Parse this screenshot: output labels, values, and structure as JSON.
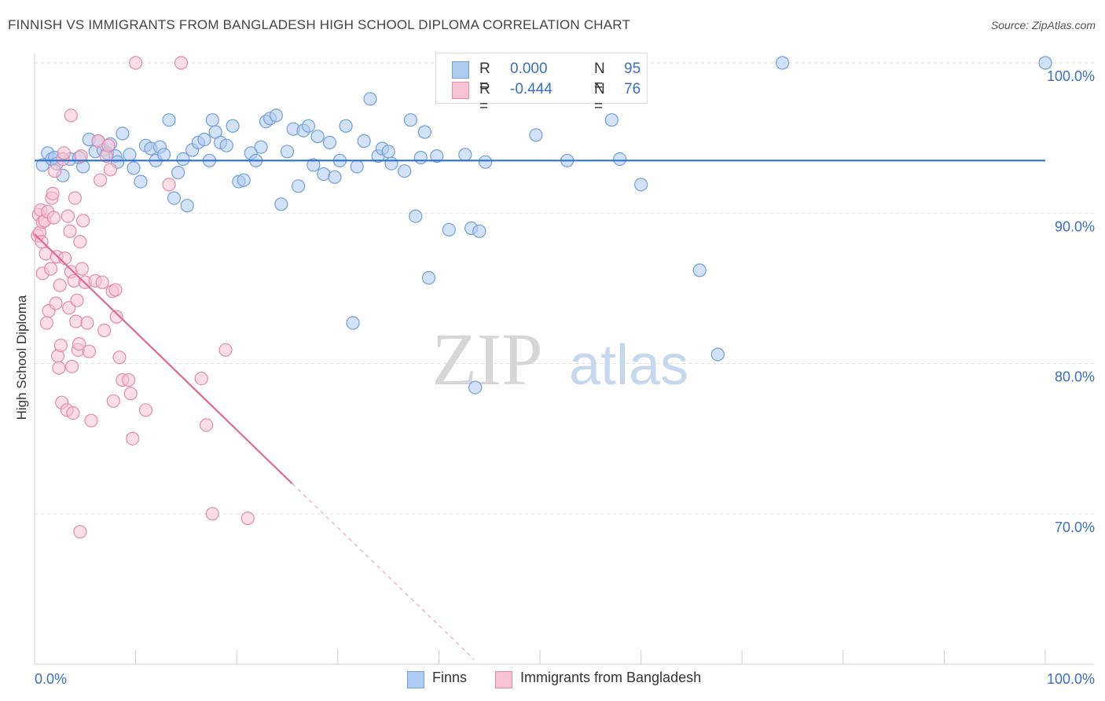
{
  "title": "FINNISH VS IMMIGRANTS FROM BANGLADESH HIGH SCHOOL DIPLOMA CORRELATION CHART",
  "source": "Source: ZipAtlas.com",
  "watermark": {
    "zip": "ZIP",
    "atlas": "atlas"
  },
  "legend": {
    "rows": [
      {
        "r_label": "R =",
        "r_value": "0.000",
        "n_label": "N =",
        "n_value": "95",
        "color": "#aecbf0",
        "border": "#6f9fdc"
      },
      {
        "r_label": "R =",
        "r_value": "-0.444",
        "n_label": "N =",
        "n_value": "76",
        "color": "#f7c3d4",
        "border": "#e58aa9"
      }
    ]
  },
  "bottom_legend": [
    {
      "label": "Finns",
      "color": "#aecbf0",
      "border": "#6f9fdc"
    },
    {
      "label": "Immigrants from Bangladesh",
      "color": "#f7c3d4",
      "border": "#e58aa9"
    }
  ],
  "chart_data": {
    "type": "scatter",
    "title": "FINNISH VS IMMIGRANTS FROM BANGLADESH HIGH SCHOOL DIPLOMA CORRELATION CHART",
    "xlabel": "",
    "ylabel": "High School Diploma",
    "xlim": [
      0,
      100
    ],
    "ylim": [
      60,
      101.5
    ],
    "x_tick_labels": [
      "0.0%",
      "100.0%"
    ],
    "y_ticks": [
      70,
      80,
      90,
      100
    ],
    "y_tick_labels": [
      "70.0%",
      "80.0%",
      "90.0%",
      "100.0%"
    ],
    "grid": true,
    "legend_position": "top-center",
    "series": [
      {
        "name": "Finns",
        "color": "#6f9fdc",
        "fill": "#aecbf0",
        "trend": {
          "x": [
            0,
            100
          ],
          "y": [
            93.5,
            93.5
          ],
          "color": "#2f6fcc"
        },
        "points": [
          [
            0.8,
            93.2
          ],
          [
            1.3,
            94.0
          ],
          [
            1.7,
            93.6
          ],
          [
            2.0,
            93.7
          ],
          [
            2.2,
            93.3
          ],
          [
            2.8,
            92.5
          ],
          [
            3.5,
            93.6
          ],
          [
            4.4,
            93.7
          ],
          [
            4.8,
            93.1
          ],
          [
            5.4,
            94.9
          ],
          [
            6.0,
            94.1
          ],
          [
            6.3,
            94.8
          ],
          [
            6.8,
            94.2
          ],
          [
            7.2,
            94.0
          ],
          [
            7.5,
            94.6
          ],
          [
            8.0,
            93.8
          ],
          [
            8.2,
            93.4
          ],
          [
            8.7,
            95.3
          ],
          [
            9.4,
            93.9
          ],
          [
            9.8,
            93.0
          ],
          [
            10.5,
            92.1
          ],
          [
            11.0,
            94.5
          ],
          [
            11.5,
            94.3
          ],
          [
            12.0,
            93.5
          ],
          [
            12.4,
            94.4
          ],
          [
            12.8,
            93.9
          ],
          [
            13.3,
            96.2
          ],
          [
            13.8,
            91.0
          ],
          [
            14.2,
            92.7
          ],
          [
            14.7,
            93.6
          ],
          [
            15.1,
            90.5
          ],
          [
            15.6,
            94.2
          ],
          [
            16.2,
            94.7
          ],
          [
            16.8,
            94.9
          ],
          [
            17.3,
            93.5
          ],
          [
            17.6,
            96.2
          ],
          [
            17.9,
            95.4
          ],
          [
            18.4,
            94.7
          ],
          [
            19.0,
            94.5
          ],
          [
            19.6,
            95.8
          ],
          [
            20.2,
            92.1
          ],
          [
            20.7,
            92.2
          ],
          [
            21.4,
            94.0
          ],
          [
            21.9,
            93.5
          ],
          [
            22.4,
            94.4
          ],
          [
            22.9,
            96.1
          ],
          [
            23.3,
            96.3
          ],
          [
            23.9,
            96.5
          ],
          [
            24.4,
            90.6
          ],
          [
            25.0,
            94.1
          ],
          [
            25.6,
            95.6
          ],
          [
            26.1,
            91.8
          ],
          [
            26.6,
            95.5
          ],
          [
            27.1,
            95.8
          ],
          [
            27.6,
            93.2
          ],
          [
            28.0,
            95.1
          ],
          [
            28.6,
            92.6
          ],
          [
            29.2,
            94.7
          ],
          [
            29.7,
            92.4
          ],
          [
            30.2,
            93.5
          ],
          [
            30.8,
            95.8
          ],
          [
            31.9,
            93.1
          ],
          [
            31.5,
            82.7
          ],
          [
            32.6,
            94.8
          ],
          [
            33.2,
            97.6
          ],
          [
            34.0,
            93.8
          ],
          [
            34.4,
            94.3
          ],
          [
            35.0,
            94.1
          ],
          [
            35.3,
            93.3
          ],
          [
            36.6,
            92.8
          ],
          [
            37.2,
            96.2
          ],
          [
            37.7,
            89.8
          ],
          [
            38.2,
            93.7
          ],
          [
            38.6,
            95.4
          ],
          [
            39.0,
            85.7
          ],
          [
            39.8,
            93.8
          ],
          [
            41.0,
            88.9
          ],
          [
            41.5,
            98.6
          ],
          [
            42.6,
            93.9
          ],
          [
            43.2,
            89.0
          ],
          [
            43.6,
            78.4
          ],
          [
            44.0,
            88.8
          ],
          [
            44.6,
            93.4
          ],
          [
            49.6,
            95.2
          ],
          [
            52.7,
            93.5
          ],
          [
            55.6,
            98.6
          ],
          [
            56.9,
            100.0
          ],
          [
            59.0,
            100.0
          ],
          [
            57.9,
            93.6
          ],
          [
            57.1,
            96.2
          ],
          [
            60.0,
            91.9
          ],
          [
            65.8,
            86.2
          ],
          [
            67.6,
            80.6
          ],
          [
            74.0,
            100.0
          ],
          [
            100,
            100.0
          ]
        ]
      },
      {
        "name": "Immigrants from Bangladesh",
        "color": "#e58aa9",
        "fill": "#f7c3d4",
        "trend": {
          "x": [
            0,
            25.5
          ],
          "y": [
            88.6,
            72.0
          ],
          "color": "#e0679a",
          "dashed_to": [
            43.5,
            60.3
          ]
        },
        "points": [
          [
            0.3,
            88.5
          ],
          [
            0.4,
            89.9
          ],
          [
            0.5,
            88.7
          ],
          [
            0.6,
            90.2
          ],
          [
            0.7,
            88.1
          ],
          [
            0.8,
            89.4
          ],
          [
            0.8,
            86.0
          ],
          [
            1.0,
            89.5
          ],
          [
            1.1,
            87.3
          ],
          [
            1.2,
            82.7
          ],
          [
            1.3,
            90.1
          ],
          [
            1.4,
            83.5
          ],
          [
            1.6,
            86.3
          ],
          [
            1.7,
            91.0
          ],
          [
            1.8,
            91.3
          ],
          [
            1.9,
            89.7
          ],
          [
            2.0,
            92.8
          ],
          [
            2.1,
            84.0
          ],
          [
            2.2,
            87.1
          ],
          [
            2.3,
            80.5
          ],
          [
            2.4,
            79.7
          ],
          [
            2.5,
            85.2
          ],
          [
            2.6,
            81.2
          ],
          [
            2.7,
            77.4
          ],
          [
            2.8,
            93.6
          ],
          [
            2.9,
            94.0
          ],
          [
            3.0,
            87.0
          ],
          [
            3.2,
            76.9
          ],
          [
            3.3,
            89.8
          ],
          [
            3.4,
            83.7
          ],
          [
            3.5,
            88.8
          ],
          [
            3.6,
            96.5
          ],
          [
            3.6,
            86.1
          ],
          [
            3.7,
            79.8
          ],
          [
            3.8,
            76.7
          ],
          [
            3.9,
            85.5
          ],
          [
            4.0,
            91.0
          ],
          [
            4.1,
            82.8
          ],
          [
            4.2,
            84.2
          ],
          [
            4.3,
            80.9
          ],
          [
            4.4,
            81.3
          ],
          [
            4.5,
            88.1
          ],
          [
            4.6,
            93.8
          ],
          [
            4.7,
            86.3
          ],
          [
            4.8,
            89.5
          ],
          [
            5.0,
            85.4
          ],
          [
            5.2,
            82.7
          ],
          [
            5.4,
            80.8
          ],
          [
            5.6,
            76.2
          ],
          [
            6.0,
            85.5
          ],
          [
            6.3,
            94.8
          ],
          [
            6.5,
            92.2
          ],
          [
            6.7,
            85.4
          ],
          [
            6.9,
            82.2
          ],
          [
            7.1,
            93.8
          ],
          [
            7.3,
            94.5
          ],
          [
            7.5,
            92.9
          ],
          [
            7.7,
            84.8
          ],
          [
            7.8,
            77.5
          ],
          [
            8.0,
            84.9
          ],
          [
            8.1,
            83.1
          ],
          [
            8.4,
            80.4
          ],
          [
            8.7,
            78.9
          ],
          [
            9.3,
            78.9
          ],
          [
            9.5,
            78.0
          ],
          [
            9.7,
            75.0
          ],
          [
            11.0,
            76.9
          ],
          [
            10.0,
            100.0
          ],
          [
            13.3,
            91.9
          ],
          [
            14.5,
            100.0
          ],
          [
            16.5,
            79.0
          ],
          [
            17.0,
            75.9
          ],
          [
            17.6,
            70.0
          ],
          [
            18.9,
            80.9
          ],
          [
            21.1,
            69.7
          ],
          [
            4.5,
            68.8
          ]
        ]
      }
    ]
  }
}
